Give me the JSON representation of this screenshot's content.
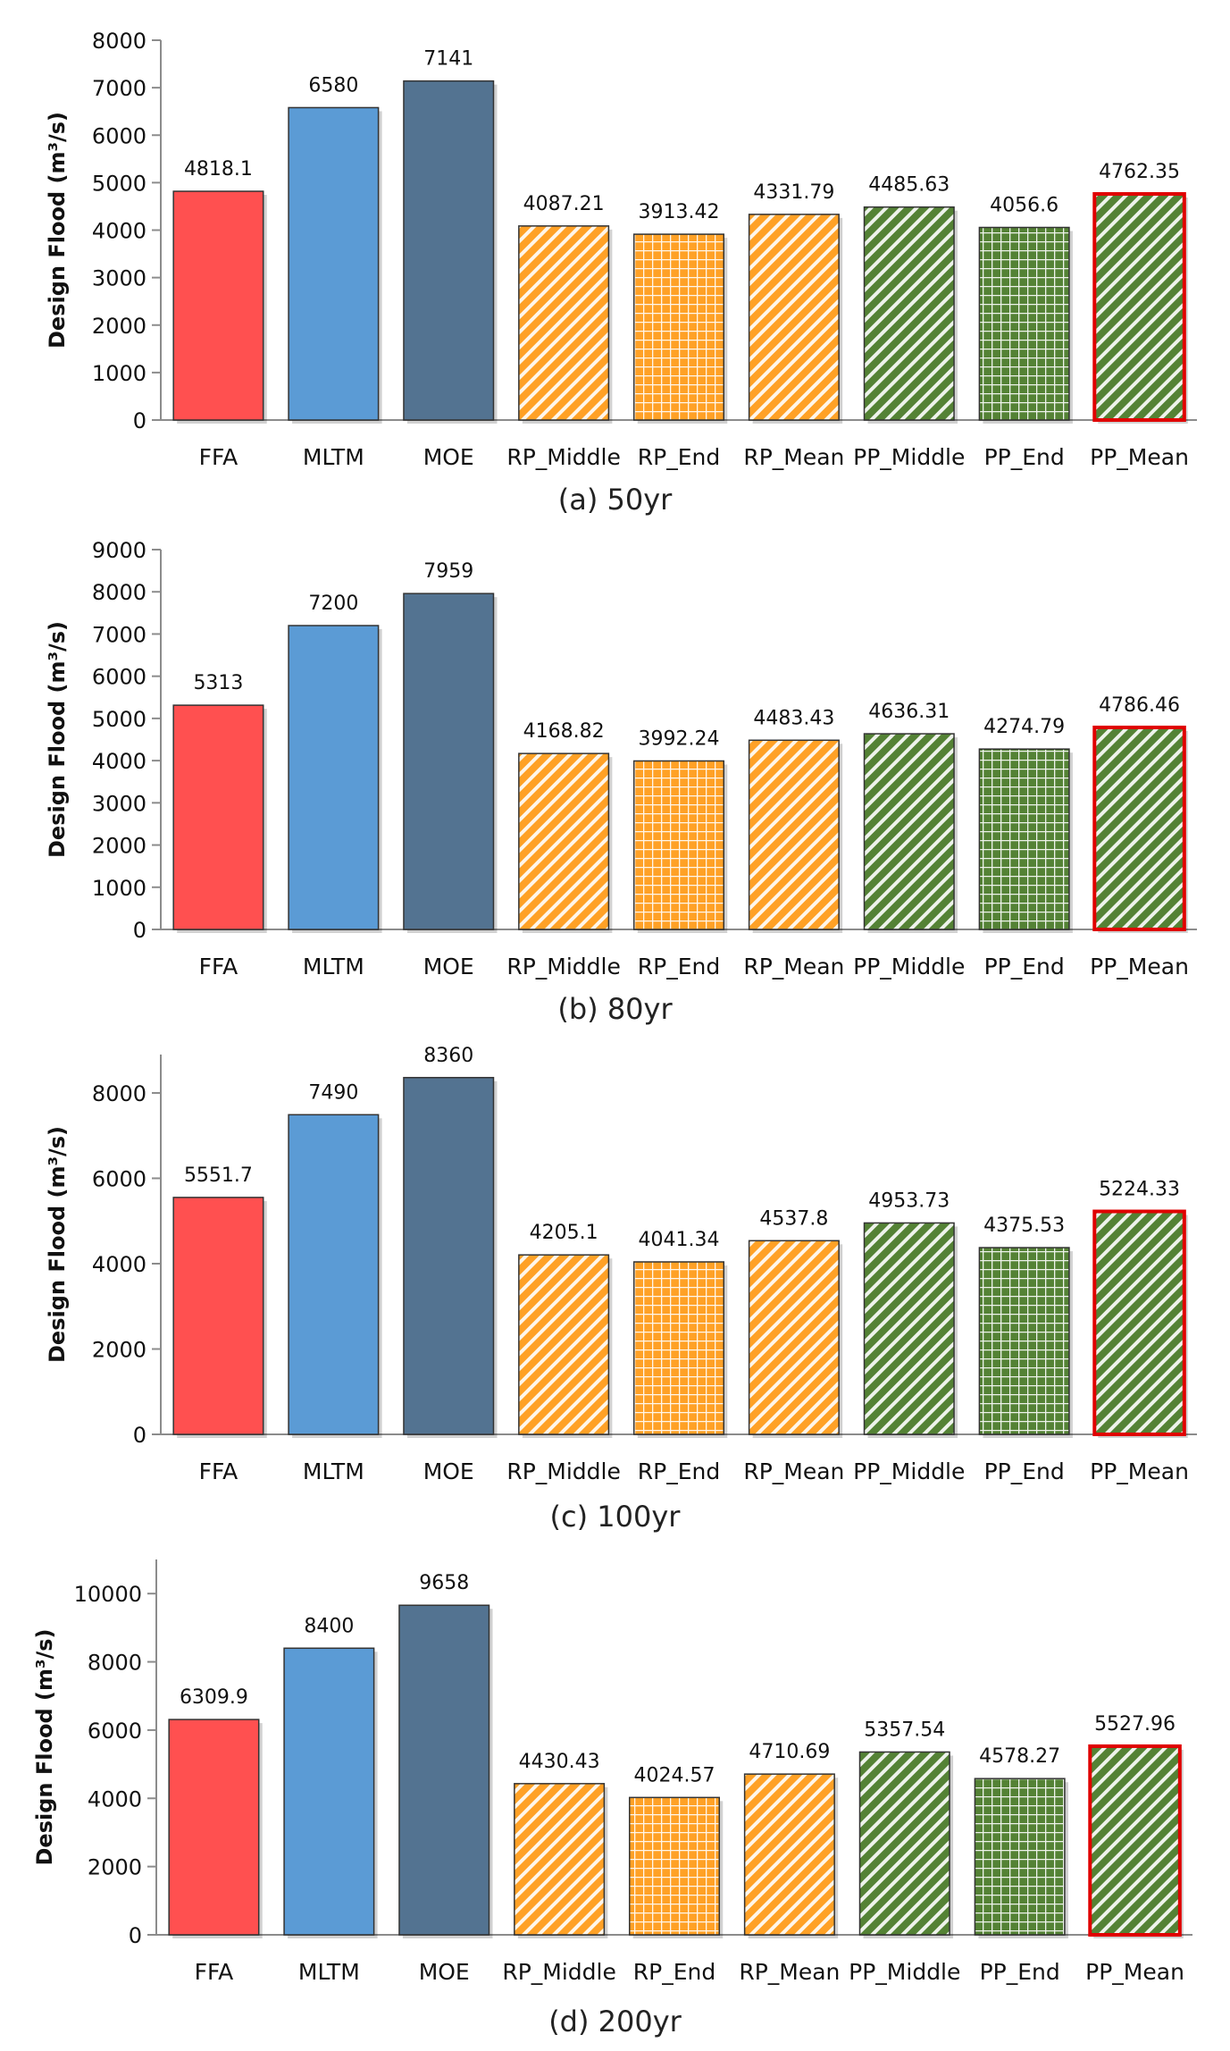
{
  "chart_data": [
    {
      "type": "bar",
      "caption": "(a) 50yr",
      "ylabel": "Design Flood (m³/s)",
      "ylim": [
        0,
        8000
      ],
      "yticks": [
        0,
        1000,
        2000,
        3000,
        4000,
        5000,
        6000,
        7000,
        8000
      ],
      "categories": [
        "FFA",
        "MLTM",
        "MOE",
        "RP_Middle",
        "RP_End",
        "RP_Mean",
        "PP_Middle",
        "PP_End",
        "PP_Mean"
      ],
      "values": [
        4818.1,
        6580,
        7141,
        4087.21,
        3913.42,
        4331.79,
        4485.63,
        4056.6,
        4762.35
      ],
      "labels": [
        "4818.1",
        "6580",
        "7141",
        "4087.21",
        "3913.42",
        "4331.79",
        "4485.63",
        "4056.6",
        "4762.35"
      ]
    },
    {
      "type": "bar",
      "caption": "(b) 80yr",
      "ylabel": "Design Flood (m³/s)",
      "ylim": [
        0,
        9000
      ],
      "yticks": [
        0,
        1000,
        2000,
        3000,
        4000,
        5000,
        6000,
        7000,
        8000,
        9000
      ],
      "categories": [
        "FFA",
        "MLTM",
        "MOE",
        "RP_Middle",
        "RP_End",
        "RP_Mean",
        "PP_Middle",
        "PP_End",
        "PP_Mean"
      ],
      "values": [
        5313,
        7200,
        7959,
        4168.82,
        3992.24,
        4483.43,
        4636.31,
        4274.79,
        4786.46
      ],
      "labels": [
        "5313",
        "7200",
        "7959",
        "4168.82",
        "3992.24",
        "4483.43",
        "4636.31",
        "4274.79",
        "4786.46"
      ]
    },
    {
      "type": "bar",
      "caption": "(c) 100yr",
      "ylabel": "Design Flood (m³/s)",
      "ylim": [
        0,
        8900
      ],
      "yticks": [
        0,
        2000,
        4000,
        6000,
        8000
      ],
      "categories": [
        "FFA",
        "MLTM",
        "MOE",
        "RP_Middle",
        "RP_End",
        "RP_Mean",
        "PP_Middle",
        "PP_End",
        "PP_Mean"
      ],
      "values": [
        5551.7,
        7490,
        8360,
        4205.1,
        4041.34,
        4537.8,
        4953.73,
        4375.53,
        5224.33
      ],
      "labels": [
        "5551.7",
        "7490",
        "8360",
        "4205.1",
        "4041.34",
        "4537.8",
        "4953.73",
        "4375.53",
        "5224.33"
      ]
    },
    {
      "type": "bar",
      "caption": "(d) 200yr",
      "ylabel": "Design Flood (m³/s)",
      "ylim": [
        0,
        11000
      ],
      "yticks": [
        0,
        2000,
        4000,
        6000,
        8000,
        10000
      ],
      "categories": [
        "FFA",
        "MLTM",
        "MOE",
        "RP_Middle",
        "RP_End",
        "RP_Mean",
        "PP_Middle",
        "PP_End",
        "PP_Mean"
      ],
      "values": [
        6309.9,
        8400,
        9658,
        4430.43,
        4024.57,
        4710.69,
        5357.54,
        4578.27,
        5527.96
      ],
      "labels": [
        "6309.9",
        "8400",
        "9658",
        "4430.43",
        "4024.57",
        "4710.69",
        "5357.54",
        "4578.27",
        "5527.96"
      ]
    }
  ],
  "styles": {
    "bar_colors": [
      "#ff5050",
      "#5b9bd5",
      "#537391",
      "#ffa126",
      "#ffa126",
      "#ffa126",
      "#548235",
      "#548235",
      "#548235"
    ],
    "bar_fills": [
      "solid",
      "solid",
      "solid",
      "diagonal",
      "grid",
      "diagonal",
      "diagonal",
      "grid",
      "diagonal"
    ],
    "highlight_index": 8,
    "highlight_color": "#e00000",
    "outline_color": "#333333"
  }
}
